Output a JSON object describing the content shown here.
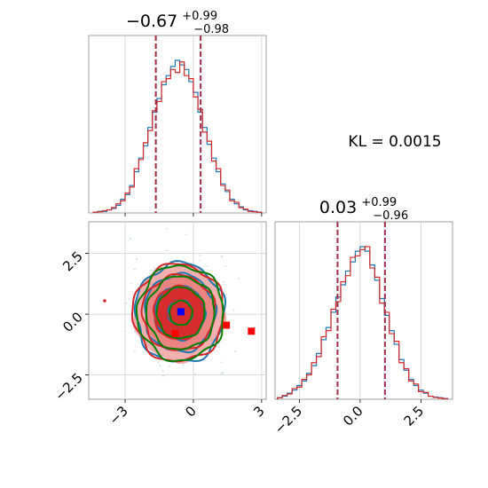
{
  "chart_data": [
    {
      "type": "histogram",
      "panel": "marginal-x1",
      "title": {
        "main": "−0.67",
        "plus": "+0.99",
        "minus": "−0.98"
      },
      "quantile_lines": [
        -1.65,
        0.32
      ],
      "xlim": [
        -4.6,
        3.2
      ],
      "series": [
        {
          "name": "",
          "color": "#1f77b4",
          "x": [
            -4.3,
            -4.1,
            -3.9,
            -3.7,
            -3.5,
            -3.3,
            -3.1,
            -2.9,
            -2.7,
            -2.5,
            -2.3,
            -2.1,
            -1.9,
            -1.7,
            -1.5,
            -1.3,
            -1.1,
            -0.9,
            -0.7,
            -0.5,
            -0.3,
            -0.1,
            0.1,
            0.3,
            0.5,
            0.7,
            0.9,
            1.1,
            1.3,
            1.5,
            1.7,
            1.9,
            2.1,
            2.3,
            2.5,
            2.7,
            2.9
          ],
          "values": [
            0.005,
            0.01,
            0.01,
            0.02,
            0.03,
            0.05,
            0.09,
            0.12,
            0.18,
            0.27,
            0.36,
            0.44,
            0.56,
            0.66,
            0.75,
            0.84,
            0.9,
            0.96,
            1.0,
            0.97,
            0.94,
            0.86,
            0.79,
            0.66,
            0.56,
            0.45,
            0.36,
            0.27,
            0.19,
            0.14,
            0.09,
            0.06,
            0.04,
            0.02,
            0.015,
            0.01,
            0.005
          ]
        },
        {
          "name": "",
          "color": "#d62728",
          "x": [
            -4.3,
            -4.1,
            -3.9,
            -3.7,
            -3.5,
            -3.3,
            -3.1,
            -2.9,
            -2.7,
            -2.5,
            -2.3,
            -2.1,
            -1.9,
            -1.7,
            -1.5,
            -1.3,
            -1.1,
            -0.9,
            -0.7,
            -0.5,
            -0.3,
            -0.1,
            0.1,
            0.3,
            0.5,
            0.7,
            0.9,
            1.1,
            1.3,
            1.5,
            1.7,
            1.9,
            2.1,
            2.3,
            2.5,
            2.7,
            2.9
          ],
          "values": [
            0.005,
            0.008,
            0.015,
            0.02,
            0.035,
            0.06,
            0.08,
            0.13,
            0.17,
            0.29,
            0.35,
            0.46,
            0.54,
            0.67,
            0.73,
            0.86,
            0.88,
            0.94,
            0.92,
            0.99,
            0.9,
            0.88,
            0.76,
            0.68,
            0.53,
            0.47,
            0.34,
            0.29,
            0.18,
            0.15,
            0.08,
            0.07,
            0.035,
            0.025,
            0.01,
            0.008,
            0.004
          ]
        }
      ]
    },
    {
      "type": "histogram",
      "panel": "marginal-x2",
      "title": {
        "main": "0.03",
        "plus": "+0.99",
        "minus": "−0.96"
      },
      "quantile_lines": [
        -0.93,
        1.02
      ],
      "xlim": [
        -3.5,
        3.8
      ],
      "xticks": [
        -2.5,
        0.0,
        2.5
      ],
      "xtick_labels": [
        "−2.5",
        "0.0",
        "2.5"
      ],
      "series": [
        {
          "name": "",
          "color": "#1f77b4",
          "x": [
            -3.3,
            -3.1,
            -2.9,
            -2.7,
            -2.5,
            -2.3,
            -2.1,
            -1.9,
            -1.7,
            -1.5,
            -1.3,
            -1.1,
            -0.9,
            -0.7,
            -0.5,
            -0.3,
            -0.1,
            0.1,
            0.3,
            0.5,
            0.7,
            0.9,
            1.1,
            1.3,
            1.5,
            1.7,
            1.9,
            2.1,
            2.3,
            2.5,
            2.7,
            2.9,
            3.1,
            3.3,
            3.5
          ],
          "values": [
            0.01,
            0.02,
            0.04,
            0.06,
            0.09,
            0.12,
            0.17,
            0.22,
            0.3,
            0.39,
            0.47,
            0.57,
            0.67,
            0.75,
            0.84,
            0.9,
            0.97,
            1.0,
            0.97,
            0.88,
            0.78,
            0.66,
            0.55,
            0.45,
            0.36,
            0.26,
            0.19,
            0.13,
            0.09,
            0.06,
            0.04,
            0.02,
            0.015,
            0.01,
            0.005
          ]
        },
        {
          "name": "",
          "color": "#d62728",
          "x": [
            -3.3,
            -3.1,
            -2.9,
            -2.7,
            -2.5,
            -2.3,
            -2.1,
            -1.9,
            -1.7,
            -1.5,
            -1.3,
            -1.1,
            -0.9,
            -0.7,
            -0.5,
            -0.3,
            -0.1,
            0.1,
            0.3,
            0.5,
            0.7,
            0.9,
            1.1,
            1.3,
            1.5,
            1.7,
            1.9,
            2.1,
            2.3,
            2.5,
            2.7,
            2.9,
            3.1,
            3.3,
            3.5
          ],
          "values": [
            0.01,
            0.025,
            0.035,
            0.07,
            0.08,
            0.13,
            0.16,
            0.24,
            0.28,
            0.41,
            0.45,
            0.59,
            0.64,
            0.77,
            0.81,
            0.93,
            0.94,
            0.98,
            1.0,
            0.86,
            0.8,
            0.63,
            0.57,
            0.43,
            0.38,
            0.24,
            0.2,
            0.12,
            0.1,
            0.05,
            0.045,
            0.02,
            0.012,
            0.008,
            0.004
          ]
        }
      ]
    },
    {
      "type": "scatter",
      "panel": "joint-x1-x2",
      "xlim": [
        -4.6,
        3.2
      ],
      "ylim": [
        -3.5,
        3.8
      ],
      "xticks": [
        -3,
        0,
        3
      ],
      "xtick_labels": [
        "−3",
        "0",
        "3"
      ],
      "yticks": [
        2.5,
        0.0,
        -2.5
      ],
      "ytick_labels": [
        "2.5",
        "0.0",
        "−2.5"
      ],
      "contour_levels": [
        {
          "color": "#1f77b4",
          "rx": [
            0.55,
            1.1,
            1.55,
            1.95
          ],
          "ry": [
            0.55,
            1.1,
            1.6,
            2.05
          ],
          "center": [
            -0.6,
            0.05
          ]
        },
        {
          "color": "#d62728",
          "rx": [
            0.55,
            1.1,
            1.6,
            2.0
          ],
          "ry": [
            0.55,
            1.1,
            1.55,
            2.0
          ],
          "center": [
            -0.65,
            0.05
          ]
        },
        {
          "color": "#008000",
          "rx": [
            0.5,
            1.05,
            1.5,
            1.9
          ],
          "ry": [
            0.5,
            1.05,
            1.5,
            1.95
          ],
          "center": [
            -0.55,
            0.05
          ]
        }
      ],
      "markers": [
        {
          "color": "#0000ff",
          "x": -0.55,
          "y": 0.1
        },
        {
          "color": "#ff0000",
          "x": -0.8,
          "y": -0.8
        },
        {
          "color": "#ff0000",
          "x": 1.45,
          "y": -0.45
        },
        {
          "color": "#ff0000",
          "x": 2.55,
          "y": -0.7
        }
      ]
    }
  ],
  "kl_text": "KL = 0.0015"
}
